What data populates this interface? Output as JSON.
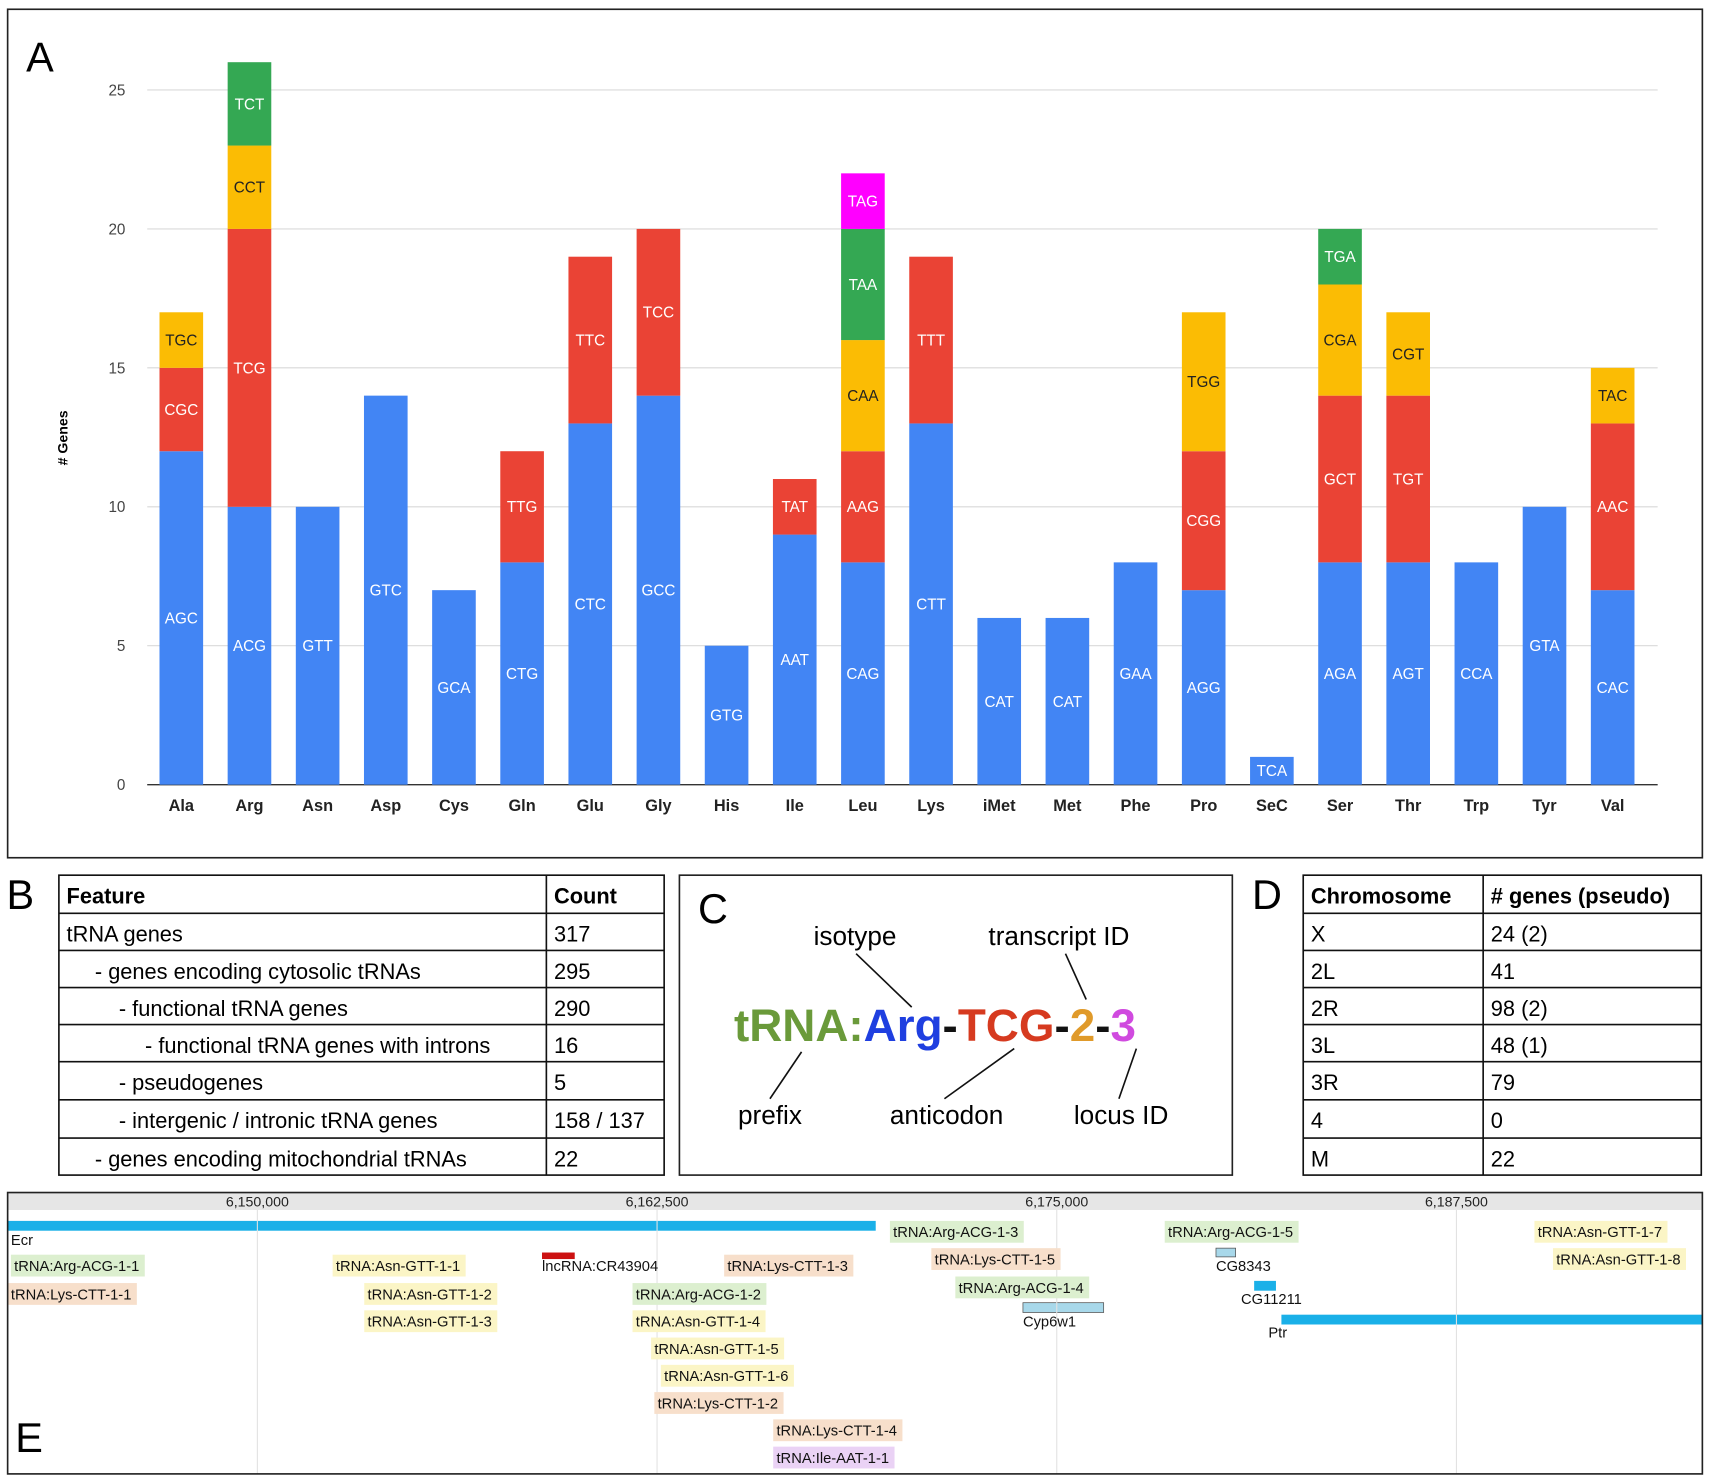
{
  "panel_labels": [
    "A",
    "B",
    "C",
    "D",
    "E"
  ],
  "chart_data": {
    "type": "bar",
    "stacked": true,
    "ylabel": "# Genes",
    "categories": [
      "Ala",
      "Arg",
      "Asn",
      "Asp",
      "Cys",
      "Gln",
      "Glu",
      "Gly",
      "His",
      "Ile",
      "Leu",
      "Lys",
      "iMet",
      "Met",
      "Phe",
      "Pro",
      "SeC",
      "Ser",
      "Thr",
      "Trp",
      "Tyr",
      "Val"
    ],
    "series": [
      {
        "color": "#4285f4",
        "label_color": "#ffffff",
        "values": [
          12,
          10,
          10,
          14,
          7,
          8,
          13,
          14,
          5,
          9,
          8,
          13,
          6,
          6,
          8,
          7,
          1,
          8,
          8,
          8,
          10,
          7
        ],
        "segment_labels": [
          "AGC",
          "ACG",
          "GTT",
          "GTC",
          "GCA",
          "CTG",
          "CTC",
          "GCC",
          "GTG",
          "AAT",
          "CAG",
          "CTT",
          "CAT",
          "CAT",
          "GAA",
          "AGG",
          "TCA",
          "AGA",
          "AGT",
          "CCA",
          "GTA",
          "CAC"
        ]
      },
      {
        "color": "#ea4335",
        "label_color": "#ffffff",
        "values": [
          3,
          10,
          null,
          null,
          null,
          4,
          6,
          6,
          null,
          2,
          4,
          6,
          null,
          null,
          null,
          5,
          null,
          6,
          6,
          null,
          null,
          6
        ],
        "segment_labels": [
          "CGC",
          "TCG",
          null,
          null,
          null,
          "TTG",
          "TTC",
          "TCC",
          null,
          "TAT",
          "AAG",
          "TTT",
          null,
          null,
          null,
          "CGG",
          null,
          "GCT",
          "TGT",
          null,
          null,
          "AAC"
        ]
      },
      {
        "color": "#fbbc04",
        "label_color": "#222222",
        "values": [
          2,
          3,
          null,
          null,
          null,
          null,
          null,
          null,
          null,
          null,
          4,
          null,
          null,
          null,
          null,
          5,
          null,
          4,
          3,
          null,
          null,
          2
        ],
        "segment_labels": [
          "TGC",
          "CCT",
          null,
          null,
          null,
          null,
          null,
          null,
          null,
          null,
          "CAA",
          null,
          null,
          null,
          null,
          "TGG",
          null,
          "CGA",
          "CGT",
          null,
          null,
          "TAC"
        ]
      },
      {
        "color": "#34a853",
        "label_color": "#ffffff",
        "values": [
          null,
          3,
          null,
          null,
          null,
          null,
          null,
          null,
          null,
          null,
          4,
          null,
          null,
          null,
          null,
          null,
          null,
          2,
          null,
          null,
          null,
          null
        ],
        "segment_labels": [
          null,
          "TCT",
          null,
          null,
          null,
          null,
          null,
          null,
          null,
          null,
          "TAA",
          null,
          null,
          null,
          null,
          null,
          null,
          "TGA",
          null,
          null,
          null,
          null
        ]
      },
      {
        "color": "#ff00ff",
        "label_color": "#ffffff",
        "values": [
          null,
          null,
          null,
          null,
          null,
          null,
          null,
          null,
          null,
          null,
          2,
          null,
          null,
          null,
          null,
          null,
          null,
          null,
          null,
          null,
          null,
          null
        ],
        "segment_labels": [
          null,
          null,
          null,
          null,
          null,
          null,
          null,
          null,
          null,
          null,
          "TAG",
          null,
          null,
          null,
          null,
          null,
          null,
          null,
          null,
          null,
          null,
          null
        ]
      }
    ],
    "ylim": [
      0,
      27
    ],
    "yticks": [
      0,
      5,
      10,
      15,
      20,
      25
    ],
    "grid": true
  },
  "table_b": {
    "header": [
      "Feature",
      "Count"
    ],
    "rows": [
      [
        "tRNA genes",
        "317"
      ],
      [
        "- genes encoding cytosolic tRNAs",
        "295"
      ],
      [
        "- functional tRNA genes",
        "290"
      ],
      [
        "- functional tRNA genes with introns",
        "16"
      ],
      [
        "- pseudogenes",
        "5"
      ],
      [
        "- intergenic / intronic tRNA genes",
        "158 / 137"
      ],
      [
        "- genes encoding mitochondrial tRNAs",
        "22"
      ]
    ]
  },
  "diagram": {
    "name_parts": [
      "tRNA:",
      "Arg",
      "-",
      "TCG",
      "-",
      "2",
      "-",
      "3"
    ],
    "callouts": [
      "isotype",
      "transcript ID",
      "prefix",
      "anticodon",
      "locus ID"
    ]
  },
  "table_d": {
    "header": [
      "Chromosome",
      "# genes (pseudo)"
    ],
    "rows": [
      [
        "X",
        "24 (2)"
      ],
      [
        "2L",
        "41"
      ],
      [
        "2R",
        "98 (2)"
      ],
      [
        "3L",
        "48 (1)"
      ],
      [
        "3R",
        "79"
      ],
      [
        "4",
        "0"
      ],
      [
        "M",
        "22"
      ]
    ]
  },
  "browser": {
    "ticks": [
      {
        "value": 6150000,
        "label": "6,150,000"
      },
      {
        "value": 6162500,
        "label": "6,162,500"
      },
      {
        "value": 6175000,
        "label": "6,175,000"
      },
      {
        "value": 6187500,
        "label": "6,187,500"
      }
    ],
    "features": [
      "Ecr",
      "tRNA:Arg-ACG-1-1",
      "tRNA:Lys-CTT-1-1",
      "tRNA:Asn-GTT-1-1",
      "tRNA:Asn-GTT-1-2",
      "tRNA:Asn-GTT-1-3",
      "lncRNA:CR43904",
      "tRNA:Lys-CTT-1-3",
      "tRNA:Arg-ACG-1-2",
      "tRNA:Asn-GTT-1-4",
      "tRNA:Asn-GTT-1-5",
      "tRNA:Asn-GTT-1-6",
      "tRNA:Lys-CTT-1-2",
      "tRNA:Lys-CTT-1-4",
      "tRNA:Ile-AAT-1-1",
      "tRNA:Arg-ACG-1-3",
      "tRNA:Lys-CTT-1-5",
      "tRNA:Arg-ACG-1-4",
      "Cyp6w1",
      "tRNA:Arg-ACG-1-5",
      "CG8343",
      "CG11211",
      "Ptr",
      "tRNA:Asn-GTT-1-7",
      "tRNA:Asn-GTT-1-8"
    ]
  }
}
